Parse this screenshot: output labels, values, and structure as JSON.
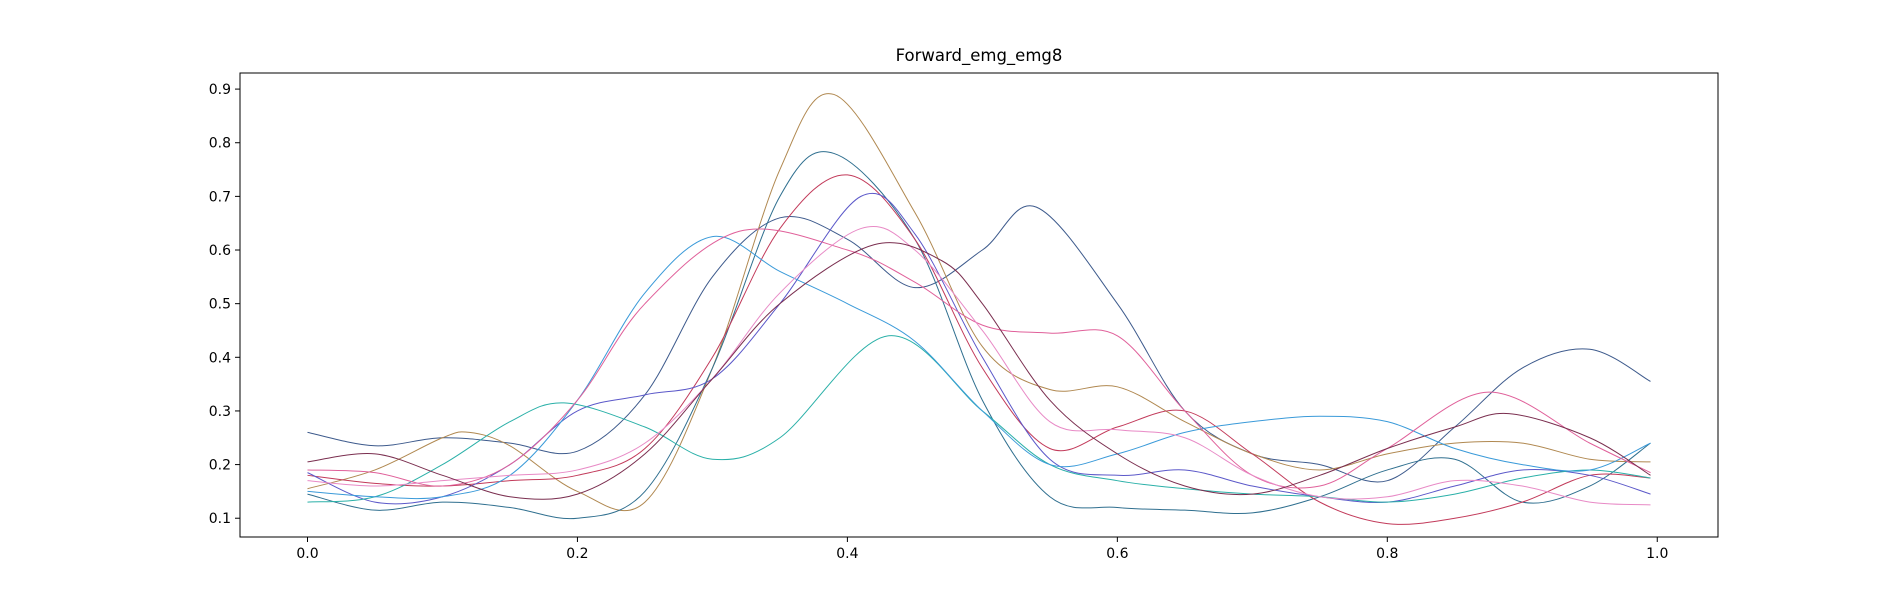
{
  "chart_data": {
    "type": "line",
    "title": "Forward_emg_emg8",
    "xlabel": "",
    "ylabel": "",
    "xlim": [
      -0.05,
      1.045
    ],
    "ylim": [
      0.065,
      0.93
    ],
    "xticks": [
      "0.0",
      "0.2",
      "0.4",
      "0.6",
      "0.8",
      "1.0"
    ],
    "yticks": [
      "0.1",
      "0.2",
      "0.3",
      "0.4",
      "0.5",
      "0.6",
      "0.7",
      "0.8",
      "0.9"
    ],
    "grid": false,
    "legend": "none",
    "series": [
      {
        "color": "#3d5a8c",
        "x": [
          0.0,
          0.05,
          0.1,
          0.15,
          0.2,
          0.25,
          0.3,
          0.35,
          0.4,
          0.45,
          0.5,
          0.54,
          0.6,
          0.65,
          0.7,
          0.75,
          0.8,
          0.85,
          0.9,
          0.95,
          0.995
        ],
        "y": [
          0.26,
          0.235,
          0.25,
          0.24,
          0.225,
          0.33,
          0.55,
          0.66,
          0.62,
          0.53,
          0.6,
          0.68,
          0.5,
          0.3,
          0.22,
          0.2,
          0.17,
          0.27,
          0.38,
          0.415,
          0.355
        ]
      },
      {
        "color": "#b08850",
        "x": [
          0.0,
          0.05,
          0.1,
          0.12,
          0.15,
          0.2,
          0.25,
          0.3,
          0.35,
          0.39,
          0.45,
          0.5,
          0.55,
          0.6,
          0.65,
          0.7,
          0.75,
          0.8,
          0.85,
          0.9,
          0.95,
          0.995
        ],
        "y": [
          0.155,
          0.19,
          0.25,
          0.26,
          0.235,
          0.15,
          0.13,
          0.38,
          0.75,
          0.89,
          0.67,
          0.42,
          0.34,
          0.345,
          0.28,
          0.22,
          0.19,
          0.22,
          0.24,
          0.24,
          0.21,
          0.205
        ]
      },
      {
        "color": "#2f6f8f",
        "x": [
          0.0,
          0.05,
          0.1,
          0.15,
          0.2,
          0.25,
          0.3,
          0.35,
          0.39,
          0.45,
          0.5,
          0.55,
          0.6,
          0.65,
          0.7,
          0.75,
          0.8,
          0.85,
          0.9,
          0.95,
          0.995
        ],
        "y": [
          0.145,
          0.115,
          0.13,
          0.12,
          0.1,
          0.15,
          0.38,
          0.7,
          0.78,
          0.62,
          0.32,
          0.14,
          0.12,
          0.115,
          0.11,
          0.14,
          0.19,
          0.21,
          0.13,
          0.16,
          0.24
        ]
      },
      {
        "color": "#c23a5a",
        "x": [
          0.0,
          0.05,
          0.1,
          0.15,
          0.2,
          0.25,
          0.3,
          0.35,
          0.4,
          0.45,
          0.5,
          0.55,
          0.6,
          0.65,
          0.7,
          0.75,
          0.8,
          0.85,
          0.9,
          0.95,
          0.995
        ],
        "y": [
          0.18,
          0.165,
          0.16,
          0.17,
          0.18,
          0.23,
          0.4,
          0.64,
          0.74,
          0.62,
          0.38,
          0.23,
          0.27,
          0.3,
          0.22,
          0.13,
          0.09,
          0.1,
          0.13,
          0.18,
          0.175
        ]
      },
      {
        "color": "#5b58c9",
        "x": [
          0.0,
          0.05,
          0.1,
          0.15,
          0.2,
          0.25,
          0.3,
          0.35,
          0.41,
          0.45,
          0.5,
          0.55,
          0.6,
          0.65,
          0.7,
          0.75,
          0.8,
          0.85,
          0.9,
          0.95,
          0.995
        ],
        "y": [
          0.185,
          0.13,
          0.14,
          0.2,
          0.3,
          0.33,
          0.36,
          0.5,
          0.7,
          0.63,
          0.4,
          0.21,
          0.18,
          0.19,
          0.16,
          0.14,
          0.13,
          0.16,
          0.19,
          0.18,
          0.145
        ]
      },
      {
        "color": "#2ab0a8",
        "x": [
          0.0,
          0.05,
          0.1,
          0.15,
          0.19,
          0.25,
          0.3,
          0.35,
          0.43,
          0.5,
          0.55,
          0.6,
          0.65,
          0.7,
          0.75,
          0.8,
          0.85,
          0.9,
          0.95,
          0.995
        ],
        "y": [
          0.13,
          0.14,
          0.2,
          0.28,
          0.315,
          0.27,
          0.21,
          0.25,
          0.44,
          0.3,
          0.2,
          0.17,
          0.155,
          0.145,
          0.14,
          0.13,
          0.145,
          0.175,
          0.19,
          0.175
        ]
      },
      {
        "color": "#3a9ad9",
        "x": [
          0.0,
          0.05,
          0.1,
          0.15,
          0.2,
          0.25,
          0.3,
          0.35,
          0.4,
          0.45,
          0.5,
          0.55,
          0.6,
          0.65,
          0.7,
          0.75,
          0.8,
          0.85,
          0.9,
          0.95,
          0.995
        ],
        "y": [
          0.15,
          0.14,
          0.14,
          0.18,
          0.32,
          0.52,
          0.625,
          0.56,
          0.5,
          0.43,
          0.3,
          0.2,
          0.22,
          0.26,
          0.28,
          0.29,
          0.28,
          0.23,
          0.2,
          0.19,
          0.24
        ]
      },
      {
        "color": "#e0609a",
        "x": [
          0.0,
          0.05,
          0.1,
          0.15,
          0.2,
          0.25,
          0.32,
          0.4,
          0.45,
          0.5,
          0.55,
          0.6,
          0.65,
          0.7,
          0.75,
          0.8,
          0.875,
          0.95,
          0.995
        ],
        "y": [
          0.19,
          0.185,
          0.16,
          0.2,
          0.32,
          0.5,
          0.635,
          0.6,
          0.54,
          0.46,
          0.445,
          0.44,
          0.3,
          0.18,
          0.16,
          0.23,
          0.335,
          0.24,
          0.185
        ]
      },
      {
        "color": "#e88ac6",
        "x": [
          0.0,
          0.05,
          0.1,
          0.15,
          0.2,
          0.25,
          0.3,
          0.35,
          0.41,
          0.45,
          0.5,
          0.55,
          0.6,
          0.65,
          0.7,
          0.75,
          0.8,
          0.85,
          0.9,
          0.95,
          0.995
        ],
        "y": [
          0.17,
          0.16,
          0.17,
          0.18,
          0.19,
          0.24,
          0.36,
          0.52,
          0.64,
          0.6,
          0.45,
          0.28,
          0.265,
          0.25,
          0.18,
          0.14,
          0.14,
          0.17,
          0.16,
          0.13,
          0.125
        ]
      },
      {
        "color": "#7a2e4f",
        "x": [
          0.0,
          0.05,
          0.1,
          0.15,
          0.2,
          0.25,
          0.3,
          0.35,
          0.42,
          0.47,
          0.5,
          0.55,
          0.6,
          0.65,
          0.7,
          0.75,
          0.8,
          0.85,
          0.89,
          0.95,
          0.995
        ],
        "y": [
          0.205,
          0.22,
          0.18,
          0.14,
          0.145,
          0.22,
          0.36,
          0.5,
          0.61,
          0.58,
          0.5,
          0.32,
          0.22,
          0.16,
          0.145,
          0.18,
          0.23,
          0.27,
          0.295,
          0.25,
          0.18
        ]
      }
    ]
  }
}
